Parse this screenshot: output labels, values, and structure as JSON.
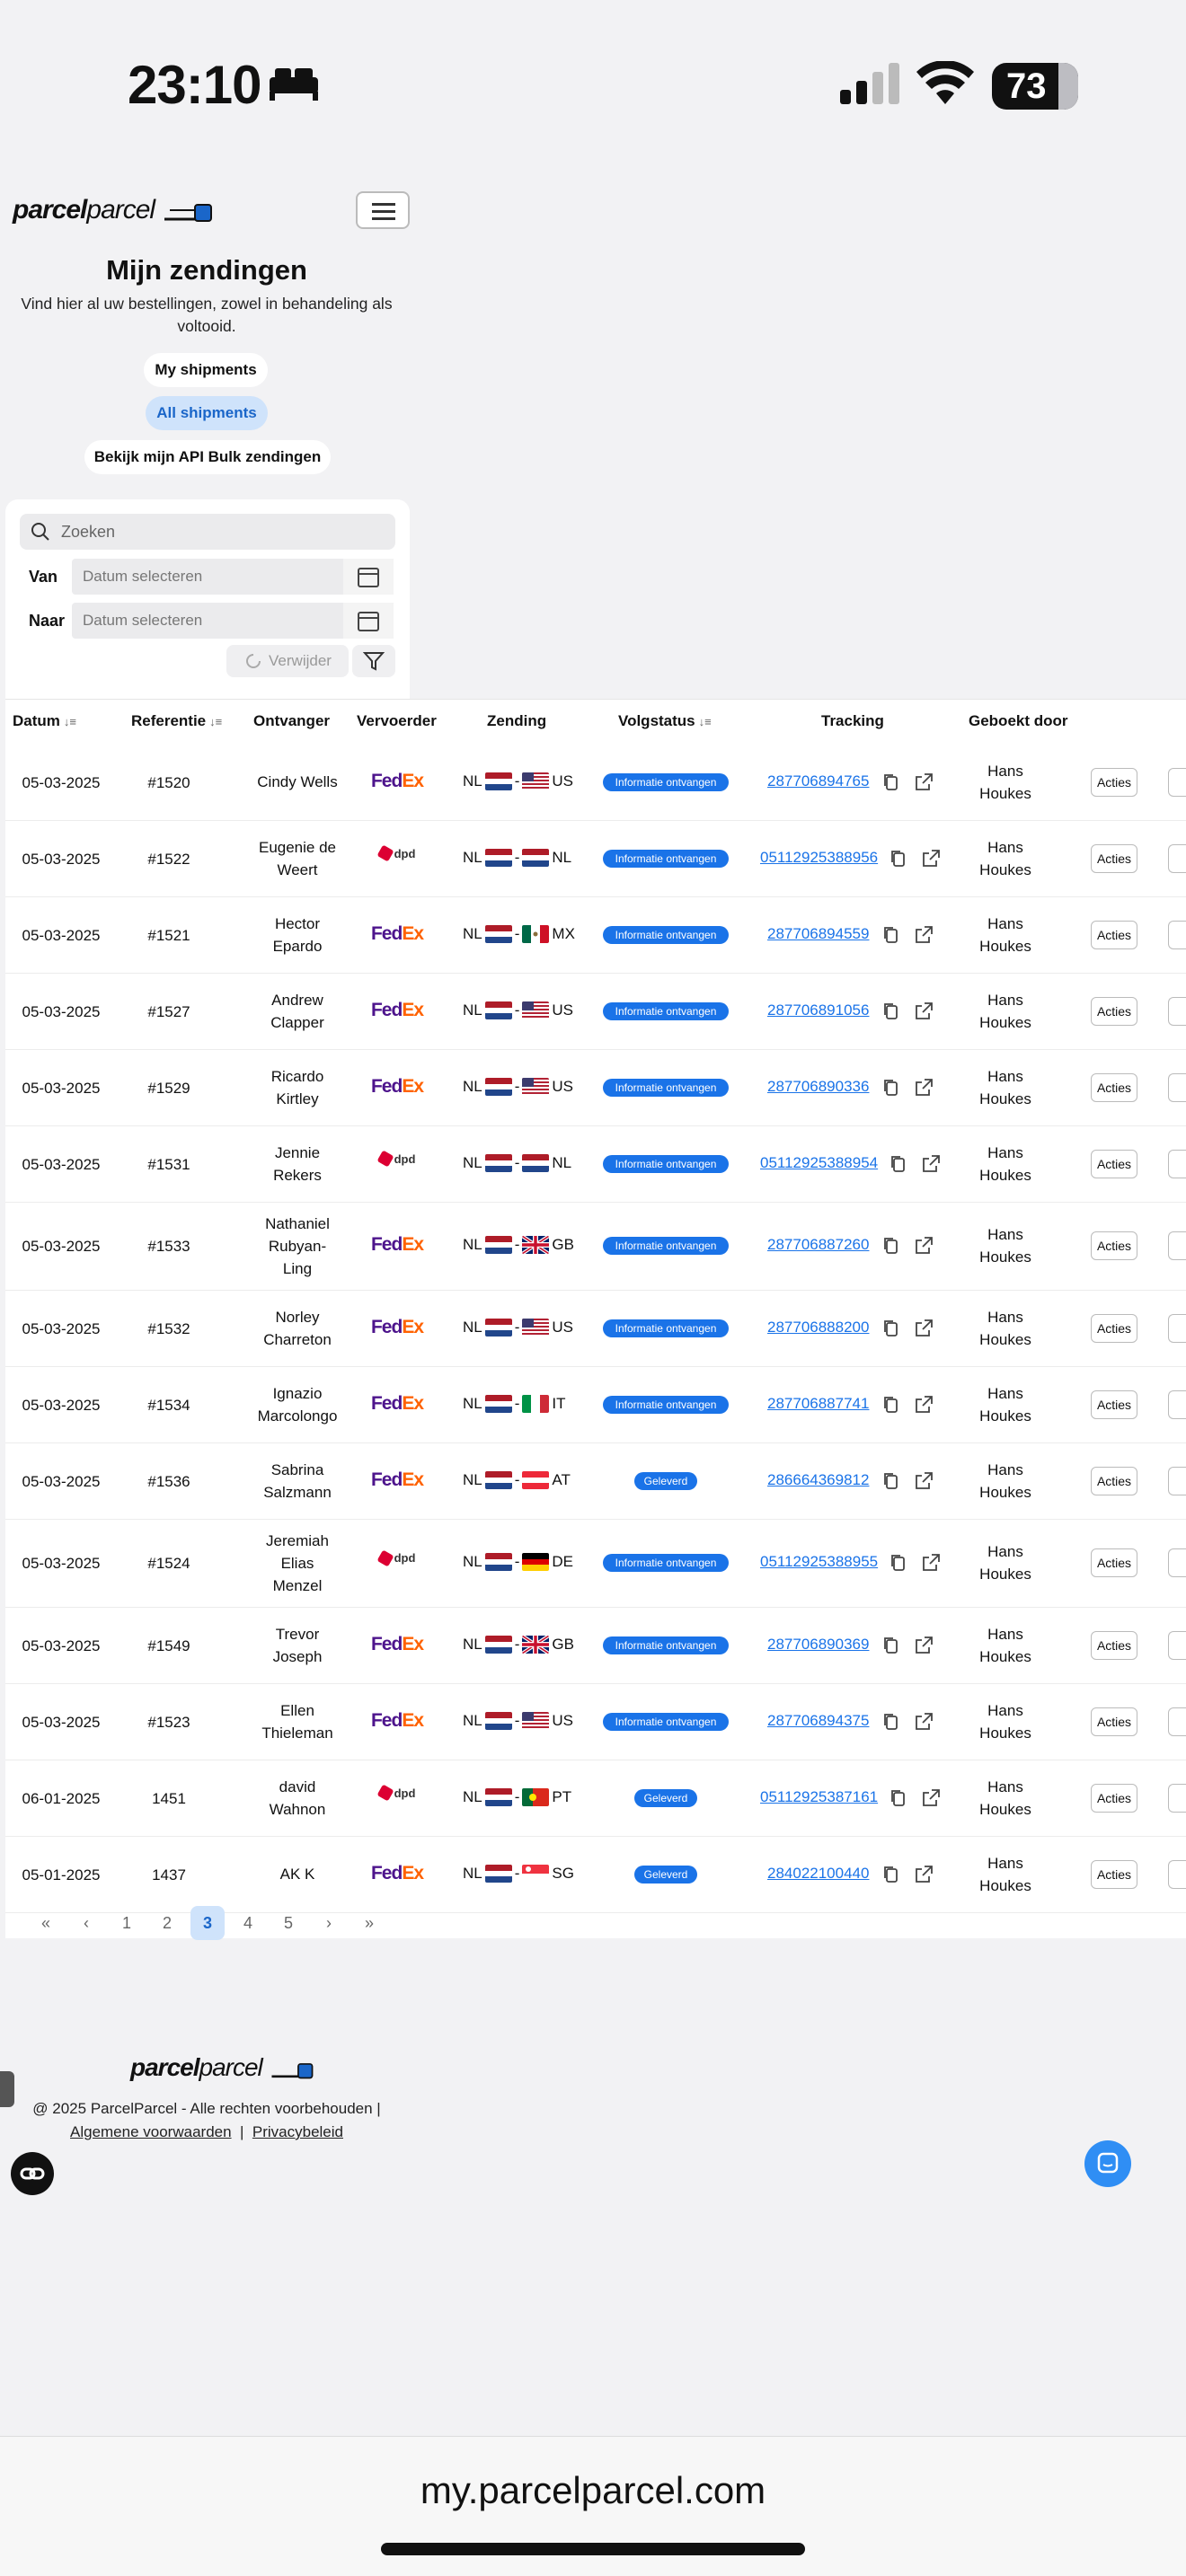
{
  "status_bar": {
    "time": "23:10",
    "battery": "73"
  },
  "brand": {
    "logo_bold": "parcel",
    "logo_light": "parcel"
  },
  "page": {
    "title": "Mijn zendingen",
    "subtitle": "Vind hier al uw bestellingen, zowel in behandeling als voltooid."
  },
  "views": {
    "my": "My shipments",
    "all": "All shipments",
    "api": "Bekijk mijn API Bulk zendingen"
  },
  "filters": {
    "search_placeholder": "Zoeken",
    "from_label": "Van",
    "to_label": "Naar",
    "date_placeholder": "Datum selecteren",
    "delete_label": "Verwijder"
  },
  "table": {
    "headers": {
      "date": "Datum",
      "ref": "Referentie",
      "recipient": "Ontvanger",
      "carrier": "Vervoerder",
      "shipment": "Zending",
      "status": "Volgstatus",
      "tracking": "Tracking",
      "booked_by": "Geboekt door"
    },
    "action_label": "Acties",
    "rows": [
      {
        "date": "05-03-2025",
        "ref": "#1520",
        "recipient": [
          "Cindy Wells"
        ],
        "carrier": "fedex",
        "from": "NL",
        "to": "US",
        "status": "Informatie ontvangen",
        "tracking": "287706894765",
        "booked_by": [
          "Hans",
          "Houkes"
        ]
      },
      {
        "date": "05-03-2025",
        "ref": "#1522",
        "recipient": [
          "Eugenie de",
          "Weert"
        ],
        "carrier": "dpd",
        "from": "NL",
        "to": "NL",
        "status": "Informatie ontvangen",
        "tracking": "05112925388956",
        "booked_by": [
          "Hans",
          "Houkes"
        ]
      },
      {
        "date": "05-03-2025",
        "ref": "#1521",
        "recipient": [
          "Hector",
          "Epardo"
        ],
        "carrier": "fedex",
        "from": "NL",
        "to": "MX",
        "status": "Informatie ontvangen",
        "tracking": "287706894559",
        "booked_by": [
          "Hans",
          "Houkes"
        ]
      },
      {
        "date": "05-03-2025",
        "ref": "#1527",
        "recipient": [
          "Andrew",
          "Clapper"
        ],
        "carrier": "fedex",
        "from": "NL",
        "to": "US",
        "status": "Informatie ontvangen",
        "tracking": "287706891056",
        "booked_by": [
          "Hans",
          "Houkes"
        ]
      },
      {
        "date": "05-03-2025",
        "ref": "#1529",
        "recipient": [
          "Ricardo",
          "Kirtley"
        ],
        "carrier": "fedex",
        "from": "NL",
        "to": "US",
        "status": "Informatie ontvangen",
        "tracking": "287706890336",
        "booked_by": [
          "Hans",
          "Houkes"
        ]
      },
      {
        "date": "05-03-2025",
        "ref": "#1531",
        "recipient": [
          "Jennie",
          "Rekers"
        ],
        "carrier": "dpd",
        "from": "NL",
        "to": "NL",
        "status": "Informatie ontvangen",
        "tracking": "05112925388954",
        "booked_by": [
          "Hans",
          "Houkes"
        ]
      },
      {
        "date": "05-03-2025",
        "ref": "#1533",
        "recipient": [
          "Nathaniel",
          "Rubyan-",
          "Ling"
        ],
        "carrier": "fedex",
        "from": "NL",
        "to": "GB",
        "status": "Informatie ontvangen",
        "tracking": "287706887260",
        "booked_by": [
          "Hans",
          "Houkes"
        ]
      },
      {
        "date": "05-03-2025",
        "ref": "#1532",
        "recipient": [
          "Norley",
          "Charreton"
        ],
        "carrier": "fedex",
        "from": "NL",
        "to": "US",
        "status": "Informatie ontvangen",
        "tracking": "287706888200",
        "booked_by": [
          "Hans",
          "Houkes"
        ]
      },
      {
        "date": "05-03-2025",
        "ref": "#1534",
        "recipient": [
          "Ignazio",
          "Marcolongo"
        ],
        "carrier": "fedex",
        "from": "NL",
        "to": "IT",
        "status": "Informatie ontvangen",
        "tracking": "287706887741",
        "booked_by": [
          "Hans",
          "Houkes"
        ]
      },
      {
        "date": "05-03-2025",
        "ref": "#1536",
        "recipient": [
          "Sabrina",
          "Salzmann"
        ],
        "carrier": "fedex",
        "from": "NL",
        "to": "AT",
        "status": "Geleverd",
        "tracking": "286664369812",
        "booked_by": [
          "Hans",
          "Houkes"
        ]
      },
      {
        "date": "05-03-2025",
        "ref": "#1524",
        "recipient": [
          "Jeremiah",
          "Elias",
          "Menzel"
        ],
        "carrier": "dpd",
        "from": "NL",
        "to": "DE",
        "status": "Informatie ontvangen",
        "tracking": "05112925388955",
        "booked_by": [
          "Hans",
          "Houkes"
        ]
      },
      {
        "date": "05-03-2025",
        "ref": "#1549",
        "recipient": [
          "Trevor",
          "Joseph"
        ],
        "carrier": "fedex",
        "from": "NL",
        "to": "GB",
        "status": "Informatie ontvangen",
        "tracking": "287706890369",
        "booked_by": [
          "Hans",
          "Houkes"
        ]
      },
      {
        "date": "05-03-2025",
        "ref": "#1523",
        "recipient": [
          "Ellen",
          "Thieleman"
        ],
        "carrier": "fedex",
        "from": "NL",
        "to": "US",
        "status": "Informatie ontvangen",
        "tracking": "287706894375",
        "booked_by": [
          "Hans",
          "Houkes"
        ]
      },
      {
        "date": "06-01-2025",
        "ref": "1451",
        "recipient": [
          "david",
          "Wahnon"
        ],
        "carrier": "dpd",
        "from": "NL",
        "to": "PT",
        "status": "Geleverd",
        "tracking": "05112925387161",
        "booked_by": [
          "Hans",
          "Houkes"
        ]
      },
      {
        "date": "05-01-2025",
        "ref": "1437",
        "recipient": [
          "AK K"
        ],
        "carrier": "fedex",
        "from": "NL",
        "to": "SG",
        "status": "Geleverd",
        "tracking": "284022100440",
        "booked_by": [
          "Hans",
          "Houkes"
        ]
      }
    ]
  },
  "pagination": {
    "first": "«",
    "prev": "‹",
    "pages": [
      "1",
      "2",
      "3",
      "4",
      "5"
    ],
    "current": "3",
    "next": "›",
    "last": "»"
  },
  "footer": {
    "copyright": "@ 2025 ParcelParcel - Alle rechten voorbehouden |",
    "terms": "Algemene voorwaarden",
    "separator": "|",
    "privacy": "Privacybeleid"
  },
  "browser": {
    "url": "my.parcelparcel.com"
  },
  "colors": {
    "accent": "#1a73e8",
    "active_pill": "#cfe3fb",
    "fedex_purple": "#4d148c",
    "fedex_orange": "#ff6200",
    "dpd_red": "#dc0032"
  }
}
